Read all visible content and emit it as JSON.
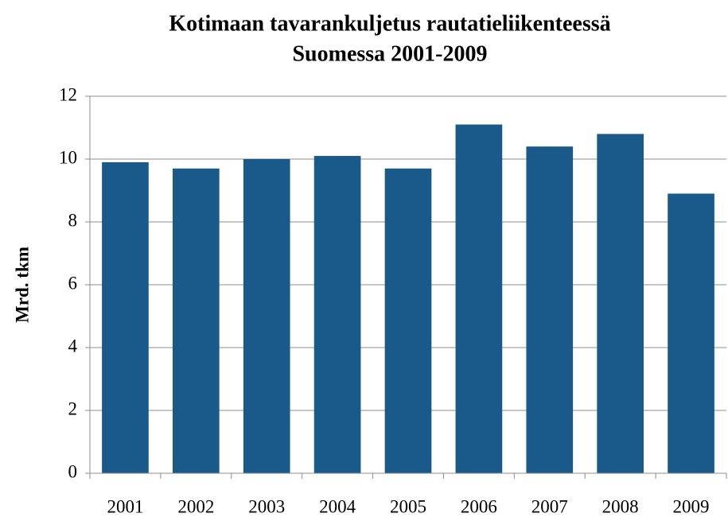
{
  "chart_data": {
    "type": "bar",
    "title": [
      "Kotimaan tavarankuljetus rautatieliikenteessä",
      "Suomessa 2001-2009"
    ],
    "ylabel": "Mrd. tkm",
    "categories": [
      "2001",
      "2002",
      "2003",
      "2004",
      "2005",
      "2006",
      "2007",
      "2008",
      "2009"
    ],
    "values": [
      9.9,
      9.7,
      10.0,
      10.1,
      9.7,
      11.1,
      10.4,
      10.8,
      8.9
    ],
    "color": "#1a5a8a",
    "ylim": [
      0,
      12
    ],
    "yticks": [
      0,
      2,
      4,
      6,
      8,
      10,
      12
    ],
    "grid": true
  }
}
